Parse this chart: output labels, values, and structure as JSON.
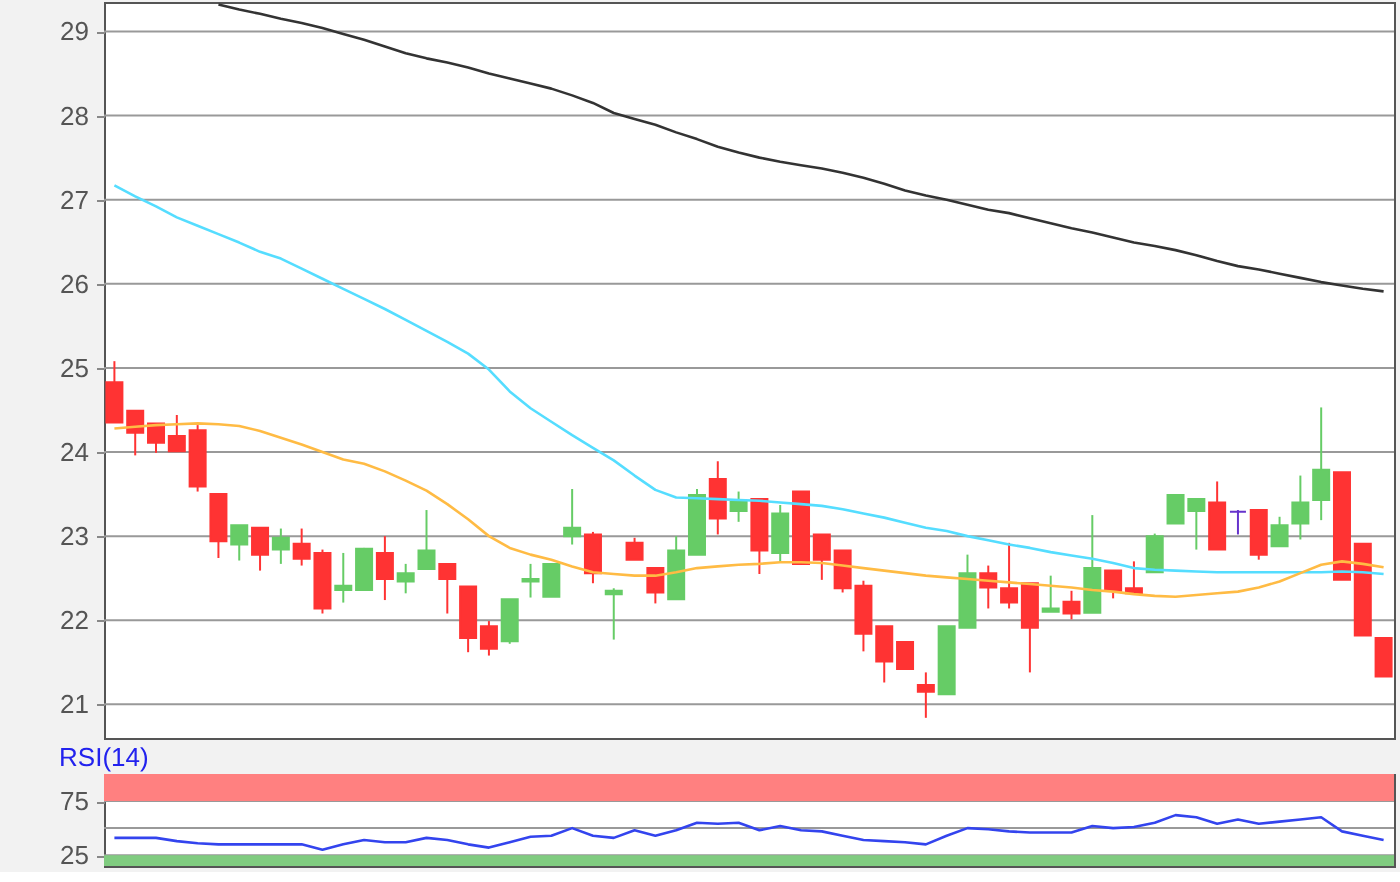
{
  "chart_data": [
    {
      "type": "candlestick",
      "categories": [
        null,
        null,
        null,
        null,
        null,
        null,
        null,
        null,
        null,
        null,
        null,
        null,
        null,
        null,
        null,
        null,
        null,
        null,
        null,
        null,
        null,
        null,
        null,
        null,
        null,
        null,
        null,
        null,
        null,
        null,
        null,
        null,
        null,
        null,
        null,
        null,
        null,
        null,
        null,
        null,
        null,
        null,
        null,
        null,
        null,
        null,
        null,
        null,
        null,
        null,
        null,
        null,
        null,
        null,
        null,
        null,
        null,
        null,
        null,
        null,
        null,
        null
      ],
      "ohlc": [
        [
          24.83,
          25.08,
          24.35,
          24.35
        ],
        [
          24.49,
          24.49,
          23.96,
          24.23
        ],
        [
          24.34,
          24.34,
          23.99,
          24.11
        ],
        [
          24.19,
          24.44,
          24.0,
          24.01
        ],
        [
          24.26,
          24.32,
          23.53,
          23.59
        ],
        [
          23.5,
          23.5,
          22.74,
          22.94
        ],
        [
          22.9,
          23.13,
          22.71,
          23.13
        ],
        [
          23.1,
          23.1,
          22.59,
          22.78
        ],
        [
          22.84,
          23.09,
          22.67,
          22.98
        ],
        [
          22.91,
          23.09,
          22.65,
          22.73
        ],
        [
          22.8,
          22.84,
          22.08,
          22.14
        ],
        [
          22.36,
          22.8,
          22.21,
          22.41
        ],
        [
          22.36,
          22.86,
          22.36,
          22.85
        ],
        [
          22.8,
          23.0,
          22.24,
          22.49
        ],
        [
          22.46,
          22.67,
          22.32,
          22.56
        ],
        [
          22.61,
          23.31,
          22.61,
          22.83
        ],
        [
          22.67,
          22.67,
          22.08,
          22.49
        ],
        [
          22.4,
          22.4,
          21.62,
          21.79
        ],
        [
          21.93,
          21.99,
          21.58,
          21.66
        ],
        [
          21.75,
          22.25,
          21.72,
          22.25
        ],
        [
          22.46,
          22.67,
          22.27,
          22.49
        ],
        [
          22.28,
          22.67,
          22.28,
          22.67
        ],
        [
          23.0,
          23.56,
          22.9,
          23.1
        ],
        [
          23.02,
          23.05,
          22.44,
          22.56
        ],
        [
          22.31,
          22.38,
          21.77,
          22.35
        ],
        [
          22.92,
          22.98,
          22.72,
          22.72
        ],
        [
          22.62,
          22.62,
          22.2,
          22.33
        ],
        [
          22.25,
          23.0,
          22.25,
          22.83
        ],
        [
          22.78,
          23.56,
          22.78,
          23.49
        ],
        [
          23.68,
          23.89,
          23.02,
          23.21
        ],
        [
          23.3,
          23.53,
          23.17,
          23.41
        ],
        [
          23.44,
          23.44,
          22.55,
          22.83
        ],
        [
          22.8,
          23.37,
          22.69,
          23.27
        ],
        [
          23.53,
          23.53,
          22.67,
          22.67
        ],
        [
          23.02,
          23.02,
          22.48,
          22.72
        ],
        [
          22.83,
          22.83,
          22.33,
          22.38
        ],
        [
          22.41,
          22.47,
          21.63,
          21.84
        ],
        [
          21.93,
          21.93,
          21.26,
          21.51
        ],
        [
          21.74,
          21.74,
          21.42,
          21.42
        ],
        [
          21.23,
          21.38,
          20.84,
          21.15
        ],
        [
          21.12,
          21.93,
          21.12,
          21.93
        ],
        [
          21.91,
          22.78,
          21.91,
          22.56
        ],
        [
          22.56,
          22.65,
          22.14,
          22.39
        ],
        [
          22.38,
          22.92,
          22.14,
          22.21
        ],
        [
          22.44,
          22.44,
          21.38,
          21.91
        ],
        [
          22.1,
          22.53,
          22.1,
          22.14
        ],
        [
          22.22,
          22.35,
          22.01,
          22.08
        ],
        [
          22.09,
          23.25,
          22.09,
          22.62
        ],
        [
          22.59,
          22.59,
          22.26,
          22.35
        ],
        [
          22.38,
          22.7,
          22.32,
          22.32
        ],
        [
          22.57,
          23.03,
          22.57,
          23.0
        ],
        [
          23.15,
          23.49,
          23.15,
          23.49
        ],
        [
          23.3,
          23.44,
          22.84,
          23.44
        ],
        [
          23.4,
          23.65,
          22.84,
          22.84
        ],
        [
          23.29,
          23.31,
          23.02,
          23.29
        ],
        [
          23.31,
          23.31,
          22.72,
          22.78
        ],
        [
          22.88,
          23.23,
          22.88,
          23.13
        ],
        [
          23.15,
          23.72,
          22.96,
          23.4
        ],
        [
          23.43,
          24.53,
          23.19,
          23.79
        ],
        [
          23.76,
          23.76,
          22.48,
          22.48
        ],
        [
          22.91,
          22.91,
          21.82,
          21.82
        ],
        [
          21.79,
          21.79,
          21.33,
          21.33
        ]
      ],
      "colors": [
        "#ff3333",
        "#ff3333",
        "#ff3333",
        "#ff3333",
        "#ff3333",
        "#ff3333",
        "#66cc66",
        "#ff3333",
        "#66cc66",
        "#ff3333",
        "#ff3333",
        "#66cc66",
        "#66cc66",
        "#ff3333",
        "#66cc66",
        "#66cc66",
        "#ff3333",
        "#ff3333",
        "#ff3333",
        "#66cc66",
        "#66cc66",
        "#66cc66",
        "#66cc66",
        "#ff3333",
        "#66cc66",
        "#ff3333",
        "#ff3333",
        "#66cc66",
        "#66cc66",
        "#ff3333",
        "#66cc66",
        "#ff3333",
        "#66cc66",
        "#ff3333",
        "#ff3333",
        "#ff3333",
        "#ff3333",
        "#ff3333",
        "#ff3333",
        "#ff3333",
        "#66cc66",
        "#66cc66",
        "#ff3333",
        "#ff3333",
        "#ff3333",
        "#66cc66",
        "#ff3333",
        "#66cc66",
        "#ff3333",
        "#ff3333",
        "#66cc66",
        "#66cc66",
        "#66cc66",
        "#ff3333",
        "#6633cc",
        "#ff3333",
        "#66cc66",
        "#66cc66",
        "#66cc66",
        "#ff3333",
        "#ff3333",
        "#ff3333"
      ],
      "series": [
        {
          "type": "line",
          "color": "#333333",
          "values": [
            null,
            null,
            null,
            null,
            null,
            29.32,
            29.26,
            29.21,
            29.15,
            29.1,
            29.04,
            28.97,
            28.9,
            28.82,
            28.74,
            28.68,
            28.63,
            28.57,
            28.5,
            28.44,
            28.38,
            28.32,
            28.24,
            28.15,
            28.03,
            27.96,
            27.89,
            27.8,
            27.72,
            27.63,
            27.56,
            27.5,
            27.45,
            27.41,
            27.37,
            27.32,
            27.26,
            27.19,
            27.11,
            27.05,
            27.0,
            26.94,
            26.88,
            26.84,
            26.78,
            26.72,
            26.66,
            26.61,
            26.55,
            26.49,
            26.45,
            26.4,
            26.34,
            26.27,
            26.21,
            26.17,
            26.12,
            26.07,
            26.02,
            25.98,
            25.94,
            25.91
          ]
        },
        {
          "type": "line",
          "color": "#55ddff",
          "values": [
            27.17,
            27.04,
            26.92,
            26.79,
            26.69,
            26.59,
            26.49,
            26.38,
            26.3,
            26.18,
            26.06,
            25.94,
            25.82,
            25.7,
            25.57,
            25.44,
            25.31,
            25.17,
            24.98,
            24.72,
            24.52,
            24.36,
            24.2,
            24.05,
            23.9,
            23.72,
            23.55,
            23.46,
            23.45,
            23.44,
            23.43,
            23.42,
            23.4,
            23.38,
            23.36,
            23.32,
            23.27,
            23.22,
            23.16,
            23.1,
            23.06,
            23.0,
            22.95,
            22.9,
            22.86,
            22.81,
            22.77,
            22.73,
            22.68,
            22.62,
            22.6,
            22.59,
            22.58,
            22.57,
            22.57,
            22.57,
            22.57,
            22.57,
            22.57,
            22.58,
            22.57,
            22.55
          ]
        },
        {
          "type": "line",
          "color": "#ffbb44",
          "values": [
            24.28,
            24.3,
            24.32,
            24.33,
            24.34,
            24.33,
            24.31,
            24.25,
            24.17,
            24.09,
            24.0,
            23.91,
            23.86,
            23.77,
            23.66,
            23.54,
            23.38,
            23.2,
            23.0,
            22.86,
            22.78,
            22.72,
            22.64,
            22.57,
            22.55,
            22.53,
            22.53,
            22.57,
            22.62,
            22.64,
            22.66,
            22.67,
            22.69,
            22.69,
            22.68,
            22.65,
            22.62,
            22.59,
            22.56,
            22.53,
            22.51,
            22.49,
            22.47,
            22.45,
            22.43,
            22.41,
            22.39,
            22.36,
            22.34,
            22.31,
            22.29,
            22.28,
            22.3,
            22.32,
            22.34,
            22.39,
            22.46,
            22.56,
            22.66,
            22.7,
            22.67,
            22.63
          ]
        }
      ],
      "ylim": [
        20.6,
        29.35
      ],
      "yticks": [
        21,
        22,
        23,
        24,
        25,
        26,
        27,
        28,
        29
      ],
      "grid": "y",
      "tick_labels": "y"
    },
    {
      "type": "line",
      "title": "RSI(14)",
      "categories": [
        null,
        null,
        null,
        null,
        null,
        null,
        null,
        null,
        null,
        null,
        null,
        null,
        null,
        null,
        null,
        null,
        null,
        null,
        null,
        null,
        null,
        null,
        null,
        null,
        null,
        null,
        null,
        null,
        null,
        null,
        null,
        null,
        null,
        null,
        null,
        null,
        null,
        null,
        null,
        null,
        null,
        null,
        null,
        null,
        null,
        null,
        null,
        null,
        null,
        null,
        null,
        null,
        null,
        null,
        null,
        null,
        null,
        null,
        null,
        null,
        null,
        null
      ],
      "series": [
        {
          "color": "#3344ee",
          "values": [
            41,
            41,
            41,
            38,
            36,
            35,
            35,
            35,
            35,
            35,
            30,
            35,
            39,
            37,
            37,
            41,
            39,
            35,
            32,
            37,
            42,
            43,
            50,
            43,
            41,
            48,
            43,
            48,
            55,
            54,
            55,
            48,
            52,
            48,
            47,
            43,
            39,
            38,
            37,
            35,
            43,
            50,
            49,
            47,
            46,
            46,
            46,
            52,
            50,
            51,
            55,
            62,
            60,
            54,
            58,
            54,
            56,
            58,
            60,
            47,
            43,
            39
          ]
        }
      ],
      "bands": [
        {
          "axis": "y",
          "from": 75,
          "to": 100,
          "color": "#ff8080"
        },
        {
          "axis": "y",
          "from": 15,
          "to": 25,
          "color": "#80cc80"
        }
      ],
      "ylim": [
        15,
        100
      ],
      "yticks": [
        25,
        {
          "value": 50,
          "label": null
        },
        75
      ],
      "grid": "y",
      "tick_labels": "y"
    }
  ]
}
